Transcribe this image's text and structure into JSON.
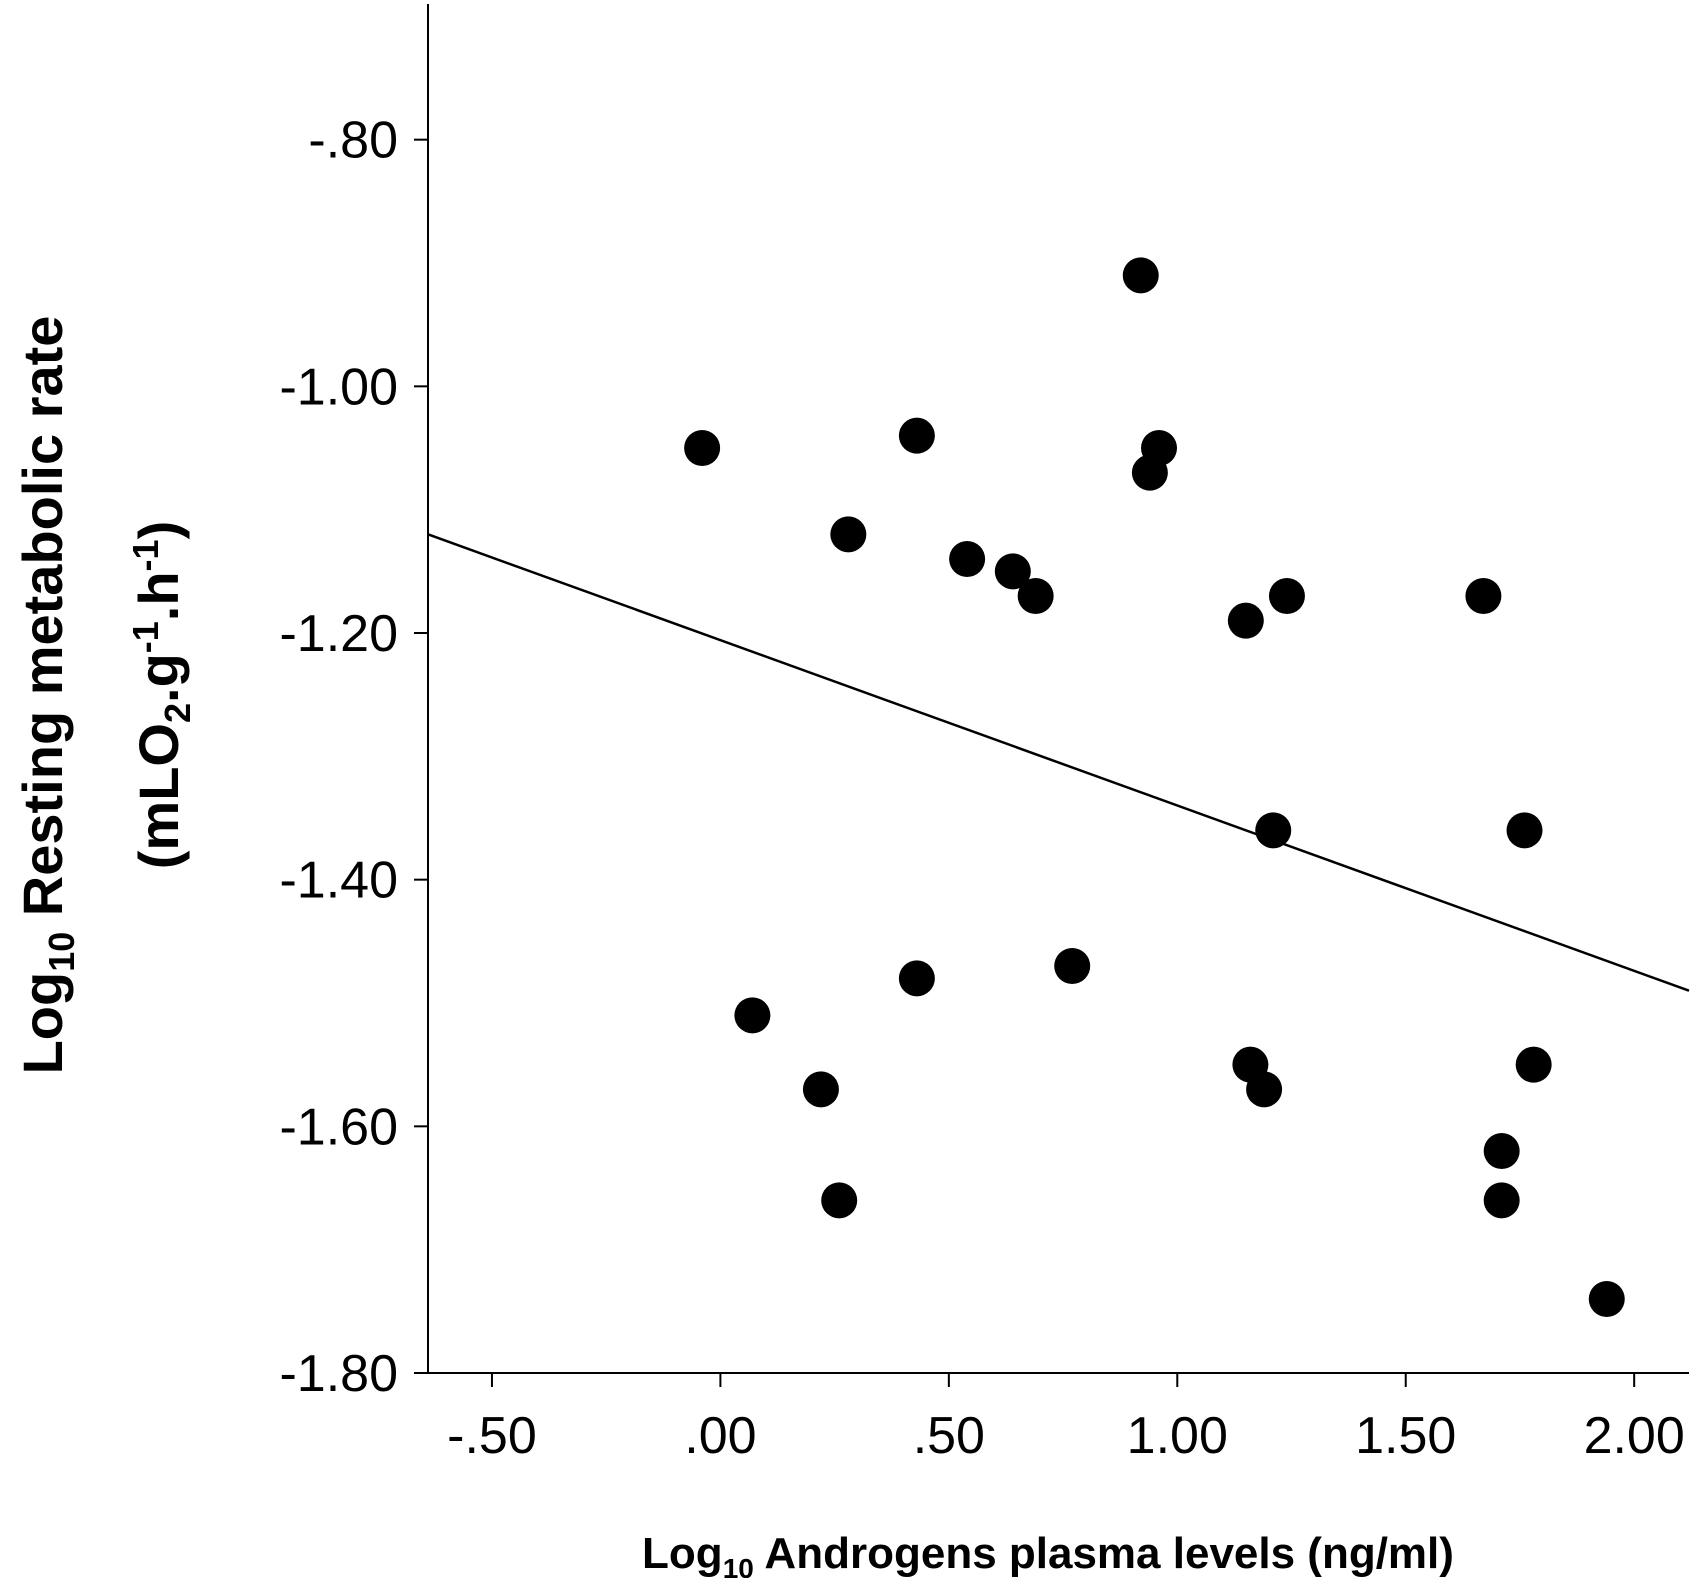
{
  "chart_data": {
    "type": "scatter",
    "xlabel": {
      "prefix": "Log",
      "sub": "10",
      "suffix": " Androgens  plasma levels (ng/ml)"
    },
    "ylabel": {
      "line1_prefix": "Log",
      "line1_sub": "10",
      "line1_suffix": " Resting metabolic rate",
      "line2_a": "(mLO",
      "line2_sub": "2",
      "line2_b": ".g",
      "line2_sup1": "-1",
      "line2_c": ".h",
      "line2_sup2": "-1",
      "line2_d": ")"
    },
    "xlim": [
      -0.64,
      2.12
    ],
    "ylim": [
      -1.8,
      -0.69
    ],
    "xticks": [
      {
        "value": -0.5,
        "label": "-.50"
      },
      {
        "value": 0.0,
        "label": ".00"
      },
      {
        "value": 0.5,
        "label": ".50"
      },
      {
        "value": 1.0,
        "label": "1.00"
      },
      {
        "value": 1.5,
        "label": "1.50"
      },
      {
        "value": 2.0,
        "label": "2.00"
      }
    ],
    "yticks": [
      {
        "value": -0.8,
        "label": "-.80"
      },
      {
        "value": -1.0,
        "label": "-1.00"
      },
      {
        "value": -1.2,
        "label": "-1.20"
      },
      {
        "value": -1.4,
        "label": "-1.40"
      },
      {
        "value": -1.6,
        "label": "-1.60"
      },
      {
        "value": -1.8,
        "label": "-1.80"
      }
    ],
    "points": [
      {
        "x": -0.04,
        "y": -1.05
      },
      {
        "x": 0.07,
        "y": -1.51
      },
      {
        "x": 0.22,
        "y": -1.57
      },
      {
        "x": 0.26,
        "y": -1.66
      },
      {
        "x": 0.28,
        "y": -1.12
      },
      {
        "x": 0.43,
        "y": -1.04
      },
      {
        "x": 0.43,
        "y": -1.48
      },
      {
        "x": 0.54,
        "y": -1.14
      },
      {
        "x": 0.64,
        "y": -1.15
      },
      {
        "x": 0.69,
        "y": -1.17
      },
      {
        "x": 0.77,
        "y": -1.47
      },
      {
        "x": 0.92,
        "y": -0.91
      },
      {
        "x": 0.94,
        "y": -1.07
      },
      {
        "x": 0.96,
        "y": -1.05
      },
      {
        "x": 1.15,
        "y": -1.19
      },
      {
        "x": 1.16,
        "y": -1.55
      },
      {
        "x": 1.19,
        "y": -1.57
      },
      {
        "x": 1.21,
        "y": -1.36
      },
      {
        "x": 1.24,
        "y": -1.17
      },
      {
        "x": 1.67,
        "y": -1.17
      },
      {
        "x": 1.71,
        "y": -1.62
      },
      {
        "x": 1.71,
        "y": -1.66
      },
      {
        "x": 1.76,
        "y": -1.36
      },
      {
        "x": 1.78,
        "y": -1.55
      },
      {
        "x": 1.94,
        "y": -1.74
      }
    ],
    "fit_line": {
      "x": [
        -0.64,
        2.12
      ],
      "y": [
        -1.12,
        -1.49
      ]
    },
    "grid": false,
    "legend": "none"
  }
}
